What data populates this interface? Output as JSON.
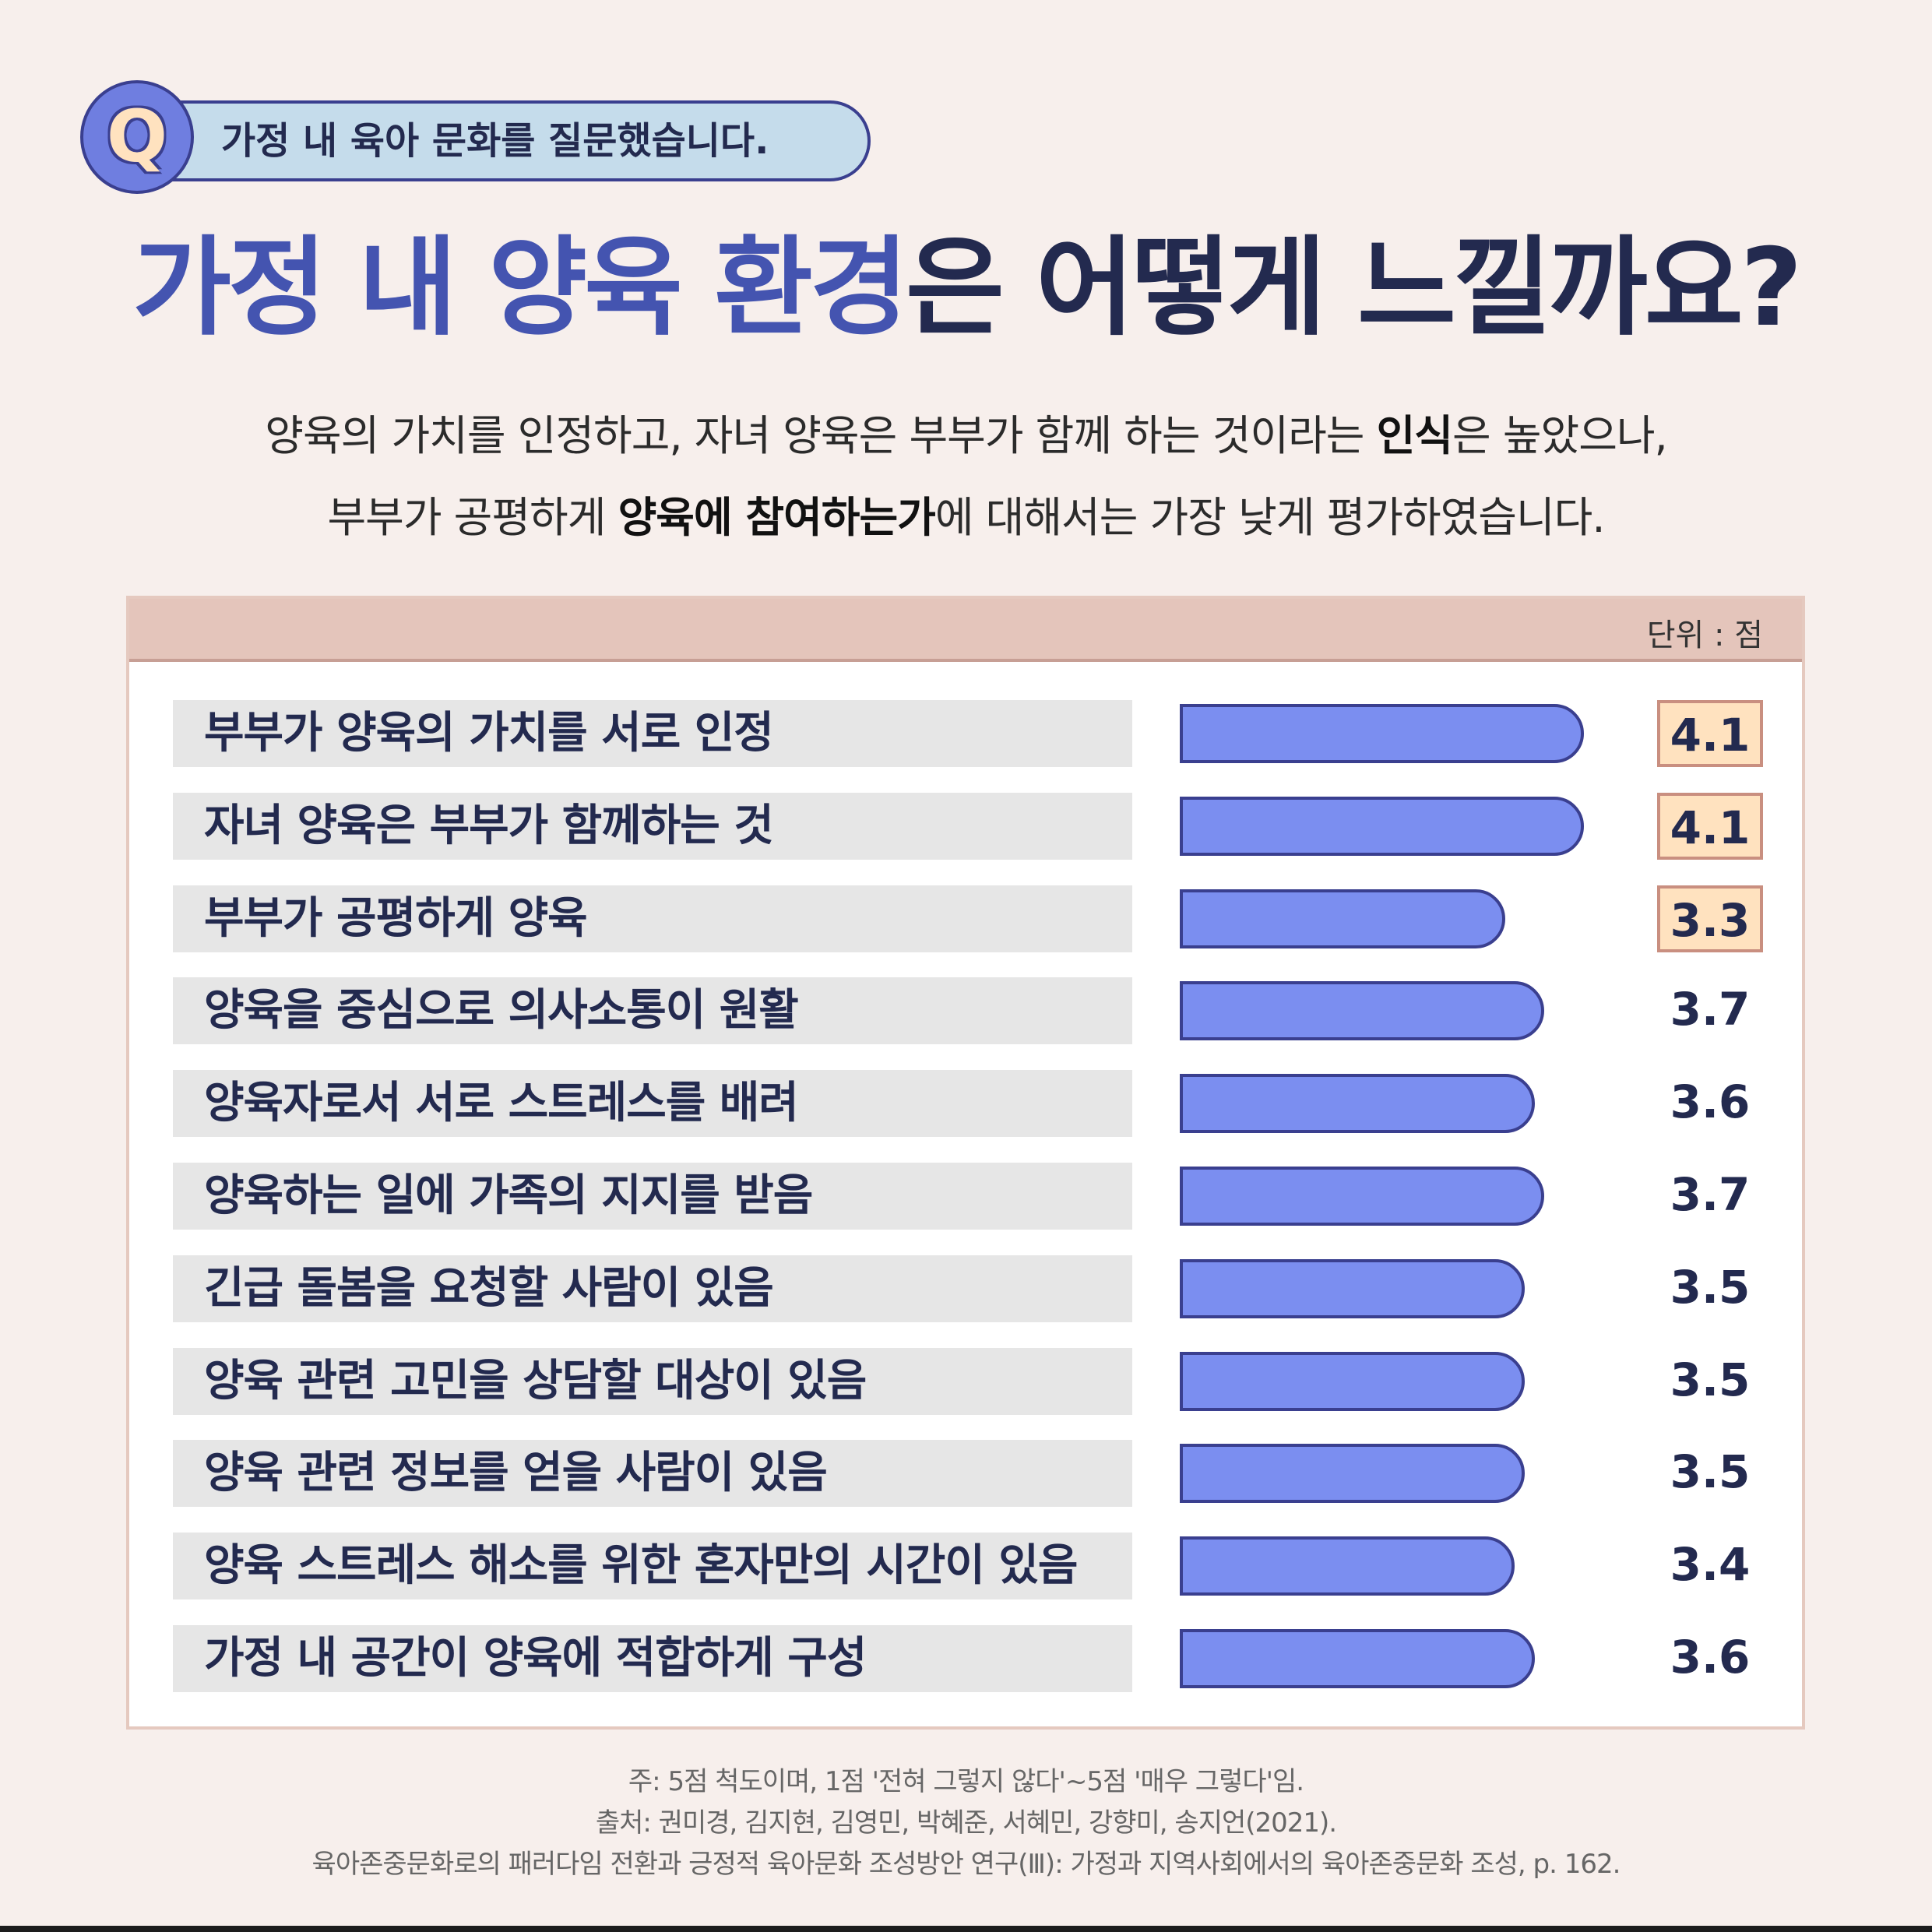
{
  "question": {
    "badge_letter": "Q",
    "text": "가정 내 육아 문화를 질문했습니다."
  },
  "title": {
    "part1": "가정 내 양육 환경",
    "part2": "은 어떻게 느낄까요?"
  },
  "subtitle": {
    "line1_a": "양육의 가치를 인정하고, 자녀 양육은 부부가 함께 하는 것이라는 ",
    "line1_bold": "인식",
    "line1_b": "은 높았으나,",
    "line2_a": "부부가 공평하게 ",
    "line2_bold": "양육에 참여하는가",
    "line2_b": "에 대해서는 가장 낮게 평가하였습니다."
  },
  "colors": {
    "accent": "#4454b0",
    "dark": "#232a4f",
    "bar_fill": "#7b8ef0",
    "bar_border": "#3a3f8f",
    "highlight_box": "#ffe2bf",
    "header_band": "#e4c5bb",
    "background": "#f7efec"
  },
  "chart_data": {
    "type": "bar",
    "orientation": "horizontal",
    "unit_label": "단위 : 점",
    "categories": [
      "부부가 양육의 가치를 서로 인정",
      "자녀 양육은 부부가 함께하는 것",
      "부부가 공평하게 양육",
      "양육을 중심으로 의사소통이 원활",
      "양육자로서 서로 스트레스를 배려",
      "양육하는 일에 가족의 지지를 받음",
      "긴급 돌봄을 요청할 사람이 있음",
      "양육 관련 고민을 상담할 대상이 있음",
      "양육 관련 정보를 얻을 사람이 있음",
      "양육 스트레스 해소를 위한 혼자만의 시간이 있음",
      "가정 내 공간이 양육에 적합하게 구성"
    ],
    "values": [
      4.1,
      4.1,
      3.3,
      3.7,
      3.6,
      3.7,
      3.5,
      3.5,
      3.5,
      3.4,
      3.6
    ],
    "value_labels": [
      "4.1",
      "4.1",
      "3.3",
      "3.7",
      "3.6",
      "3.7",
      "3.5",
      "3.5",
      "3.5",
      "3.4",
      "3.6"
    ],
    "highlighted": [
      true,
      true,
      true,
      false,
      false,
      false,
      false,
      false,
      false,
      false,
      false
    ],
    "scale_max": 5
  },
  "notes": {
    "note1": "주: 5점 척도이며, 1점 '전혀 그렇지 않다'~5점 '매우 그렇다'임.",
    "note2": "출처: 권미경, 김지현, 김영민, 박혜준, 서혜민, 강향미, 송지언(2021).",
    "note3": "육아존중문화로의 패러다임 전환과 긍정적 육아문화 조성방안 연구(Ⅲ): 가정과 지역사회에서의 육아존중문화 조성, p. 162."
  }
}
